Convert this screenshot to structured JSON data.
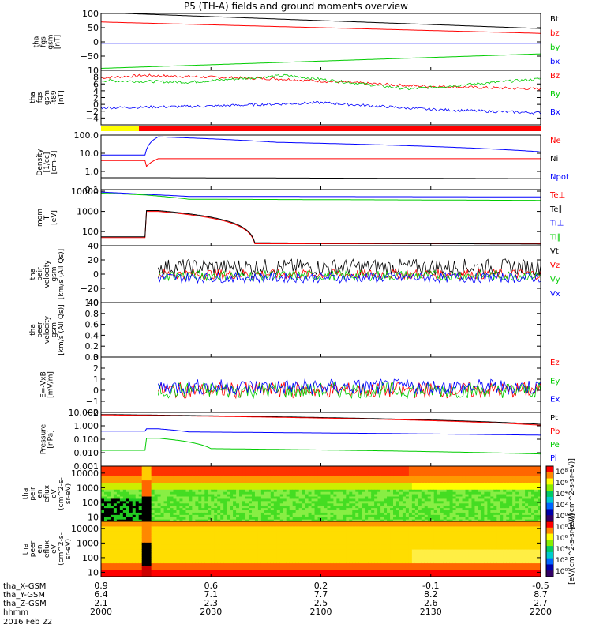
{
  "title": "P5 (TH-A) fields and ground moments overview",
  "colors": {
    "black": "#000000",
    "red": "#ff0000",
    "green": "#00cc00",
    "blue": "#0000ff",
    "yellow": "#ffff00"
  },
  "chart_data": [
    {
      "type": "line",
      "ylabel": [
        "tha",
        "fgs",
        "gsm",
        "[nT]"
      ],
      "ylim": [
        -100,
        100
      ],
      "yticks": [
        "100",
        "50",
        "0",
        "−50"
      ],
      "yticks_v": [
        100,
        50,
        0,
        -50
      ],
      "series": [
        {
          "name": "Bt",
          "color": "#000000",
          "x": [
            0,
            1
          ],
          "y": [
            103,
            47
          ]
        },
        {
          "name": "bz",
          "color": "#ff0000",
          "x": [
            0,
            1
          ],
          "y": [
            70,
            30
          ]
        },
        {
          "name": "by",
          "color": "#00cc00",
          "x": [
            0,
            1
          ],
          "y": [
            -93,
            -42
          ]
        },
        {
          "name": "bx",
          "color": "#0000ff",
          "x": [
            0,
            1
          ],
          "y": [
            -5,
            -5
          ]
        }
      ]
    },
    {
      "type": "line",
      "ylabel": [
        "tha",
        "fgs",
        "gsm",
        "-t89",
        "[nT]"
      ],
      "ylim": [
        -6,
        10
      ],
      "yticks": [
        "10",
        "8",
        "6",
        "4",
        "2",
        "0",
        "−2",
        "−4"
      ],
      "yticks_v": [
        10,
        8,
        6,
        4,
        2,
        0,
        -2,
        -4
      ],
      "series": [
        {
          "name": "Bz",
          "color": "#ff0000",
          "x": [
            0,
            0.1,
            0.4,
            0.7,
            1
          ],
          "y": [
            7.8,
            8.5,
            7.5,
            5.5,
            4.5
          ]
        },
        {
          "name": "By",
          "color": "#00cc00",
          "x": [
            0,
            0.2,
            0.42,
            0.7,
            1
          ],
          "y": [
            7,
            6.5,
            8.5,
            4.5,
            7.5
          ]
        },
        {
          "name": "Bx",
          "color": "#0000ff",
          "x": [
            0,
            0.25,
            0.5,
            0.75,
            1
          ],
          "y": [
            -1,
            -0.5,
            0.5,
            -1.5,
            -2.5
          ]
        }
      ]
    },
    {
      "type": "line",
      "ylabel": [
        "Density",
        "[1/cc]",
        "[cm-3]"
      ],
      "yscale": "log",
      "ylim": [
        0.1,
        100
      ],
      "yticks": [
        "100.0",
        "10.0",
        "1.0",
        "0.1"
      ],
      "yticks_v": [
        100,
        10,
        1,
        0.1
      ],
      "series": [
        {
          "name": "Ne",
          "color": "#ff0000",
          "x": [
            0,
            0.1,
            0.1,
            0.13,
            1
          ],
          "y": [
            4,
            4,
            1.5,
            5,
            5
          ]
        },
        {
          "name": "Ni",
          "color": "#000000",
          "x": [
            0,
            0.1,
            1
          ],
          "y": [
            0.45,
            0.45,
            0.4
          ]
        },
        {
          "name": "Npot",
          "color": "#0000ff",
          "x": [
            0,
            0.1,
            0.13,
            0.4,
            1
          ],
          "y": [
            8,
            8,
            80,
            40,
            12
          ]
        }
      ]
    },
    {
      "type": "line",
      "ylabel": [
        "mom",
        "T",
        "[eV]"
      ],
      "yscale": "log",
      "ylim": [
        20,
        12000
      ],
      "yticks": [
        "10000",
        "1000",
        "100"
      ],
      "yticks_v": [
        10000,
        1000,
        100
      ],
      "series": [
        {
          "name": "Te⊥",
          "color": "#ff0000",
          "x": [
            0,
            0.1,
            0.1,
            0.13,
            0.35,
            1
          ],
          "y": [
            50,
            50,
            1000,
            1000,
            25,
            25
          ]
        },
        {
          "name": "Te∥",
          "color": "#000000",
          "x": [
            0,
            0.1,
            0.1,
            0.13,
            0.35,
            1
          ],
          "y": [
            55,
            55,
            1100,
            1100,
            28,
            24
          ]
        },
        {
          "name": "Ti⊥",
          "color": "#0000ff",
          "x": [
            0,
            0.1,
            0.2,
            1
          ],
          "y": [
            9000,
            7000,
            5500,
            5200
          ]
        },
        {
          "name": "Ti∥",
          "color": "#00cc00",
          "x": [
            0,
            0.1,
            0.2,
            1
          ],
          "y": [
            8000,
            6500,
            4000,
            3500
          ]
        }
      ]
    },
    {
      "type": "line",
      "ylabel": [
        "tha",
        "peir",
        "velocity",
        "gsm",
        "[km/s (All Qs)]"
      ],
      "ylim": [
        -40,
        40
      ],
      "yticks": [
        "40",
        "20",
        "0",
        "−20",
        "−40"
      ],
      "yticks_v": [
        40,
        20,
        0,
        -20,
        -40
      ],
      "series": [
        {
          "name": "Vt",
          "color": "#000000",
          "x": [
            0.13,
            1
          ],
          "y": [
            10,
            10
          ]
        },
        {
          "name": "Vz",
          "color": "#ff0000",
          "x": [
            0.13,
            1
          ],
          "y": [
            0,
            0
          ]
        },
        {
          "name": "Vy",
          "color": "#00cc00",
          "x": [
            0.13,
            1
          ],
          "y": [
            -2,
            -2
          ]
        },
        {
          "name": "Vx",
          "color": "#0000ff",
          "x": [
            0.13,
            1
          ],
          "y": [
            -5,
            -5
          ]
        }
      ]
    },
    {
      "type": "line",
      "ylabel": [
        "tha",
        "peer",
        "velocity",
        "gsm",
        "[km/s (All Qs)]"
      ],
      "ylim": [
        0,
        1
      ],
      "yticks": [
        "1.0",
        "0.8",
        "0.6",
        "0.4",
        "0.2",
        "0.0"
      ],
      "yticks_v": [
        1,
        0.8,
        0.6,
        0.4,
        0.2,
        0
      ],
      "series": [
        {
          "name": "Vt",
          "color": "#000000",
          "x": [],
          "y": []
        },
        {
          "name": "Vz",
          "color": "#ff0000",
          "x": [],
          "y": []
        },
        {
          "name": "Vy",
          "color": "#00cc00",
          "x": [],
          "y": []
        },
        {
          "name": "Vx",
          "color": "#0000ff",
          "x": [],
          "y": []
        }
      ]
    },
    {
      "type": "line",
      "ylabel": [
        "E=-VxB",
        "[mV/m]"
      ],
      "ylim": [
        -2,
        3
      ],
      "yticks": [
        "3",
        "2",
        "1",
        "0",
        "−1",
        "−2"
      ],
      "yticks_v": [
        3,
        2,
        1,
        0,
        -1,
        -2
      ],
      "series": [
        {
          "name": "Ez",
          "color": "#ff0000",
          "x": [
            0.13,
            1
          ],
          "y": [
            0,
            0
          ]
        },
        {
          "name": "Ey",
          "color": "#00cc00",
          "x": [
            0.13,
            1
          ],
          "y": [
            0,
            0
          ]
        },
        {
          "name": "Ex",
          "color": "#0000ff",
          "x": [
            0.13,
            1
          ],
          "y": [
            0.3,
            0.3
          ]
        }
      ]
    },
    {
      "type": "line",
      "ylabel": [
        "Pressure",
        "[nPa]"
      ],
      "yscale": "log",
      "ylim": [
        0.001,
        10
      ],
      "yticks": [
        "10.000",
        "1.000",
        "0.100",
        "0.010",
        "0.001"
      ],
      "yticks_v": [
        10,
        1,
        0.1,
        0.01,
        0.001
      ],
      "series": [
        {
          "name": "Pt",
          "color": "#000000",
          "x": [
            0,
            1
          ],
          "y": [
            7,
            1.3
          ]
        },
        {
          "name": "Pb",
          "color": "#ff0000",
          "x": [
            0,
            1
          ],
          "y": [
            6.5,
            1.1
          ]
        },
        {
          "name": "Pe",
          "color": "#00cc00",
          "x": [
            0,
            0.1,
            0.1,
            0.13,
            0.25,
            1
          ],
          "y": [
            0.015,
            0.015,
            0.12,
            0.12,
            0.02,
            0.008
          ]
        },
        {
          "name": "Pi",
          "color": "#0000ff",
          "x": [
            0,
            0.1,
            0.1,
            0.13,
            0.2,
            1
          ],
          "y": [
            0.4,
            0.4,
            0.6,
            0.6,
            0.35,
            0.2
          ]
        }
      ]
    },
    {
      "type": "heatmap",
      "ylabel": [
        "tha",
        "peir",
        "en",
        "eflux",
        "eV",
        "(cm^2-s-",
        "sr-eV)"
      ],
      "yscale": "log",
      "ylim": [
        5,
        30000
      ],
      "yticks": [
        "10000",
        "1000",
        "100",
        "10"
      ],
      "yticks_v": [
        10000,
        1000,
        100,
        10
      ],
      "colorbar_label": "[eV/(cm^2-s-sr-eV)]",
      "colorbar_ticks": [
        "10⁸",
        "10⁶",
        "10⁴",
        "10²",
        "10⁰"
      ]
    },
    {
      "type": "heatmap",
      "ylabel": [
        "tha",
        "peer",
        "en",
        "eflux",
        "eV",
        "(cm^2-s-",
        "sr-eV)"
      ],
      "yscale": "log",
      "ylim": [
        5,
        30000
      ],
      "yticks": [
        "10000",
        "1000",
        "100",
        "10"
      ],
      "yticks_v": [
        10000,
        1000,
        100,
        10
      ],
      "colorbar_label": "[eV/(cm^2-s-sr-eV)]",
      "colorbar_ticks": [
        "10⁸",
        "10⁶",
        "10⁴",
        "10²",
        "10⁰"
      ]
    }
  ],
  "x_axis": {
    "rows": [
      {
        "label": "tha_X-GSM",
        "values": [
          "0.9",
          "0.6",
          "0.2",
          "-0.1",
          "-0.5"
        ]
      },
      {
        "label": "tha_Y-GSM",
        "values": [
          "6.4",
          "7.1",
          "7.7",
          "8.2",
          "8.7"
        ]
      },
      {
        "label": "tha_Z-GSM",
        "values": [
          "2.1",
          "2.3",
          "2.5",
          "2.6",
          "2.7"
        ]
      },
      {
        "label": "hhmm",
        "values": [
          "2000",
          "2030",
          "2100",
          "2130",
          "2200"
        ]
      }
    ],
    "date": "2016 Feb 22"
  }
}
